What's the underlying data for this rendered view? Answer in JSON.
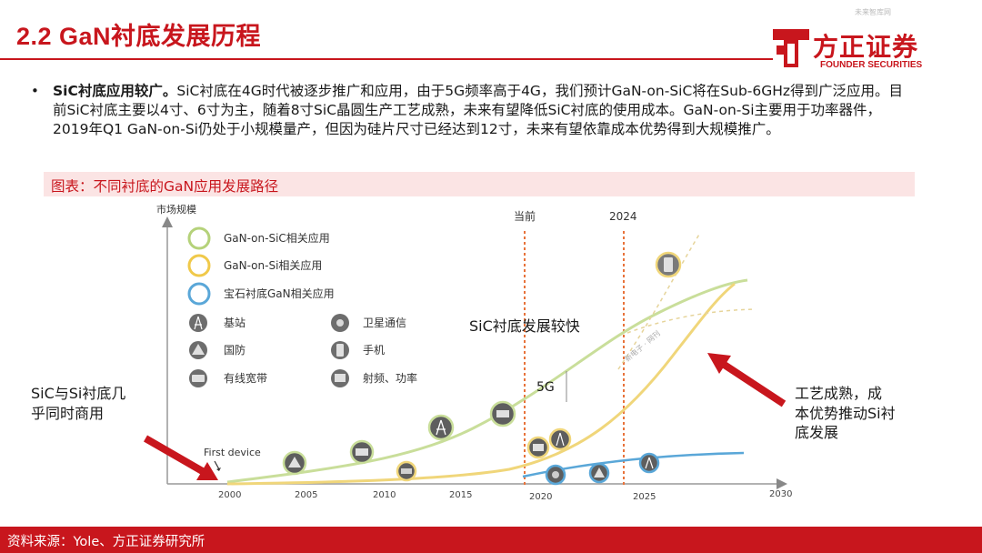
{
  "header": {
    "title": "2.2 GaN衬底发展历程",
    "watermark": "未来智库网",
    "logo_cn": "方正证券",
    "logo_en": "FOUNDER SECURITIES"
  },
  "bullet": {
    "lead": "SiC衬底应用较广。",
    "text": "SiC衬底在4G时代被逐步推广和应用，由于5G频率高于4G，我们预计GaN-on-SiC将在Sub-6GHz得到广泛应用。目前SiC衬底主要以4寸、6寸为主，随着8寸SiC晶圆生产工艺成熟，未来有望降低SiC衬底的使用成本。GaN-on-Si主要用于功率器件，2019年Q1 GaN-on-Si仍处于小规模量产，但因为硅片尺寸已经达到12寸，未来有望依靠成本优势得到大规模推广。"
  },
  "figure": {
    "caption": "图表：不同衬底的GaN应用发展路径",
    "y_axis_label": "市场规模",
    "x_ticks": [
      "2000",
      "2005",
      "2010",
      "2015",
      "2020",
      "2025",
      "2030"
    ],
    "marker_now": "当前",
    "marker_2024": "2024",
    "legend": [
      {
        "label": "GaN-on-SiC相关应用",
        "color": "#b5d27a"
      },
      {
        "label": "GaN-on-Si相关应用",
        "color": "#f0c94a"
      },
      {
        "label": "宝石衬底GaN相关应用",
        "color": "#5aa7d8"
      }
    ],
    "app_legend": [
      {
        "label": "基站",
        "icon": "base-station-icon"
      },
      {
        "label": "卫星通信",
        "icon": "satellite-icon"
      },
      {
        "label": "国防",
        "icon": "radar-icon"
      },
      {
        "label": "手机",
        "icon": "phone-icon"
      },
      {
        "label": "有线宽带",
        "icon": "broadband-icon"
      },
      {
        "label": "射频、功率",
        "icon": "rf-power-icon"
      }
    ],
    "annotations": {
      "sic_fast": "SiC衬底发展较快",
      "five_g": "5G",
      "left_note_line1": "SiC与Si衬底几",
      "left_note_line2": "乎同时商用",
      "right_note_line1": "工艺成熟，成",
      "right_note_line2": "本优势推动Si衬",
      "right_note_line3": "底发展",
      "first_device": "First device",
      "curve_watermark": "新电子 · 网刊"
    },
    "colors": {
      "accent": "#c8161d",
      "sic_curve": "#b5d27a",
      "si_curve": "#f0c94a",
      "sapphire_curve": "#5aa7d8",
      "marker_line": "#e8733b"
    }
  },
  "footer": {
    "source": "资料来源：Yole、方正证券研究所"
  }
}
